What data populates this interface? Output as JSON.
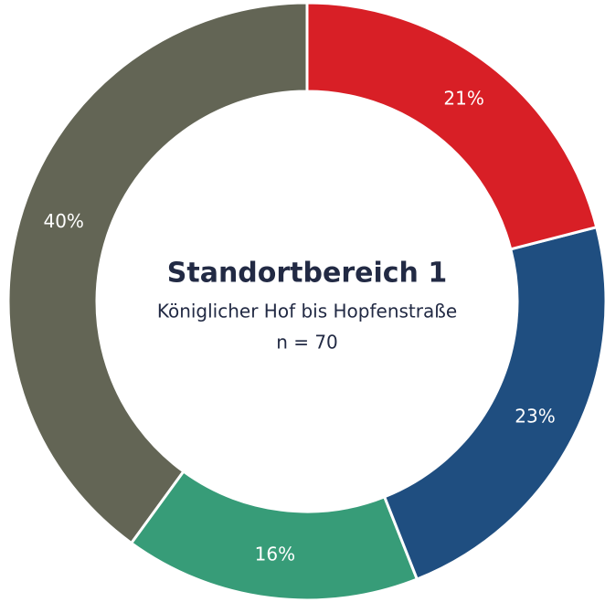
{
  "chart_data": {
    "type": "donut",
    "title": "Standortbereich 1",
    "subtitle": "Königlicher Hof bis Hopfenstraße",
    "annotation": "n = 70",
    "categories": [
      null,
      null,
      null,
      null
    ],
    "values": [
      21,
      23,
      16,
      40
    ],
    "value_labels": [
      "21%",
      "23%",
      "16%",
      "40%"
    ],
    "colors": [
      "#d81f26",
      "#1f4e80",
      "#379c78",
      "#636555"
    ]
  }
}
